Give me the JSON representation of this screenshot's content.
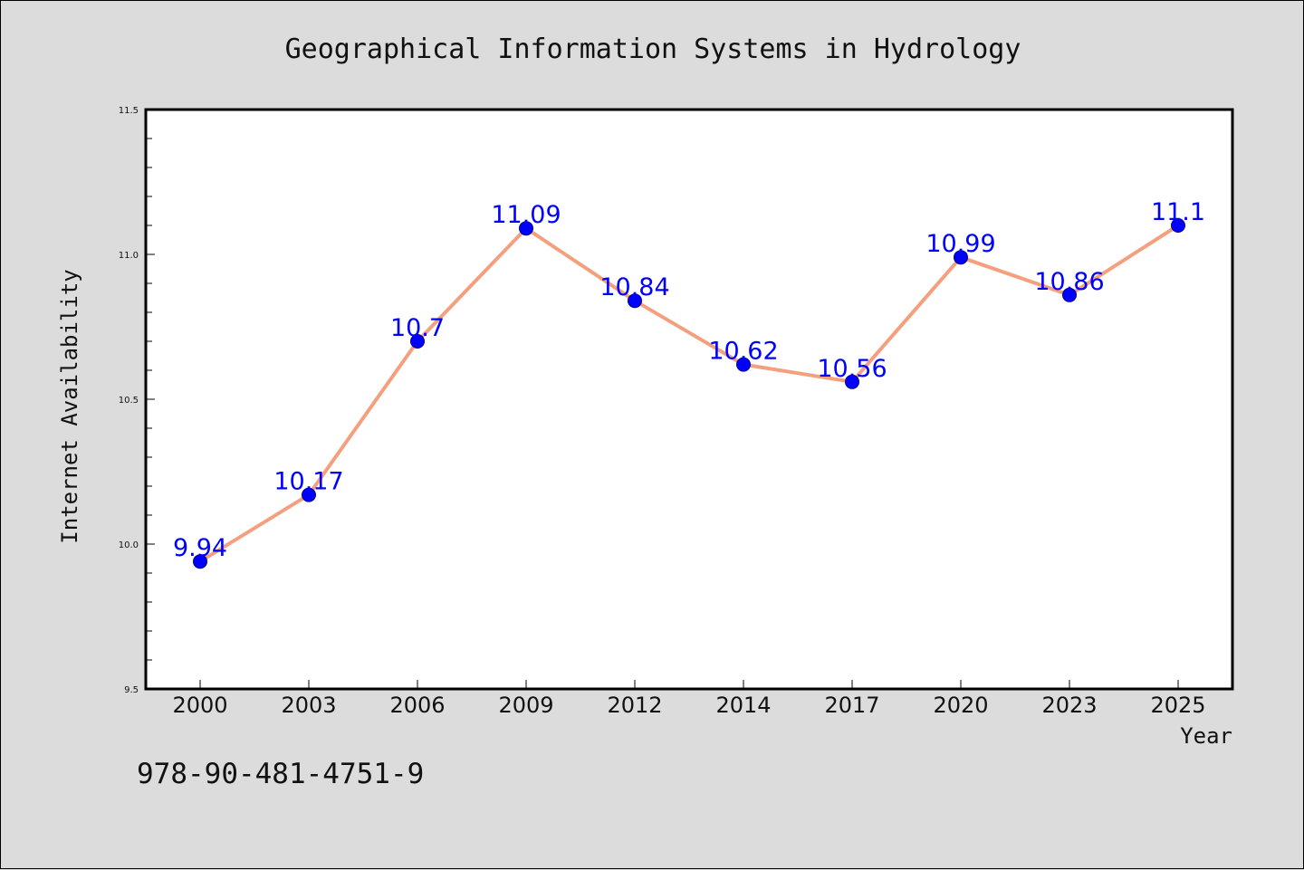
{
  "colors": {
    "background": "#dcdcdc",
    "plot_background": "#ffffff",
    "line": "#f4a07f",
    "marker": "#0000ff",
    "data_label": "#0000ff"
  },
  "footer": {
    "isbn": "978-90-481-4751-9"
  },
  "chart_data": {
    "type": "line",
    "title": "Geographical Information Systems in Hydrology",
    "xlabel": "Year",
    "ylabel": "Internet Availability",
    "categories": [
      "2000",
      "2003",
      "2006",
      "2009",
      "2012",
      "2014",
      "2017",
      "2020",
      "2023",
      "2025"
    ],
    "series": [
      {
        "values": [
          9.94,
          10.17,
          10.7,
          11.09,
          10.84,
          10.62,
          10.56,
          10.99,
          10.86,
          11.1
        ],
        "labels": [
          "9.94",
          "10.17",
          "10.7",
          "11.09",
          "10.84",
          "10.62",
          "10.56",
          "10.99",
          "10.86",
          "11.1"
        ]
      }
    ],
    "ylim": [
      9.5,
      11.5
    ],
    "yticks": [
      "9.5",
      "10.0",
      "10.5",
      "11.0",
      "11.5"
    ],
    "grid": false,
    "legend": "none",
    "markers": true
  }
}
